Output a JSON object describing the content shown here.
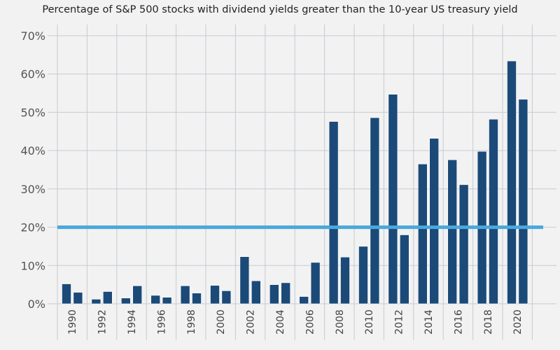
{
  "chart_data": {
    "type": "bar",
    "title": "Percentage of S&P 500 stocks with dividend yields greater than the 10-year US treasury yield",
    "categories": [
      "1990",
      "1991",
      "1992",
      "1993",
      "1994",
      "1995",
      "1996",
      "1997",
      "1998",
      "1999",
      "2000",
      "2001",
      "2002",
      "2003",
      "2004",
      "2005",
      "2006",
      "2007",
      "2008",
      "2009",
      "2010",
      "2011",
      "2012",
      "2013",
      "2014",
      "2015",
      "2016",
      "2017",
      "2018",
      "2019",
      "2020",
      "2021"
    ],
    "x_tick_labels": [
      "1990",
      "1992",
      "1994",
      "1996",
      "1998",
      "2000",
      "2002",
      "2004",
      "2006",
      "2008",
      "2010",
      "2012",
      "2014",
      "2016",
      "2018",
      "2020"
    ],
    "values": [
      5.2,
      3.0,
      1.2,
      3.2,
      1.5,
      4.7,
      2.2,
      1.7,
      4.7,
      2.8,
      4.8,
      3.4,
      12.3,
      6.0,
      5.0,
      5.5,
      1.9,
      10.8,
      47.6,
      12.2,
      15.0,
      48.6,
      54.7,
      18.0,
      36.5,
      43.2,
      37.6,
      31.1,
      39.8,
      48.2,
      63.4,
      53.4
    ],
    "reference_line": {
      "value": 20,
      "color": "#4aa8dc"
    },
    "y_tick_labels": [
      "0%",
      "10%",
      "20%",
      "30%",
      "40%",
      "50%",
      "60%",
      "70%"
    ],
    "ylim": [
      0,
      70
    ],
    "grid": true,
    "xlabel": "",
    "ylabel": "",
    "colors": {
      "bar": "#1b4a78",
      "background": "#f2f2f2",
      "grid": "#c5cad2"
    }
  }
}
